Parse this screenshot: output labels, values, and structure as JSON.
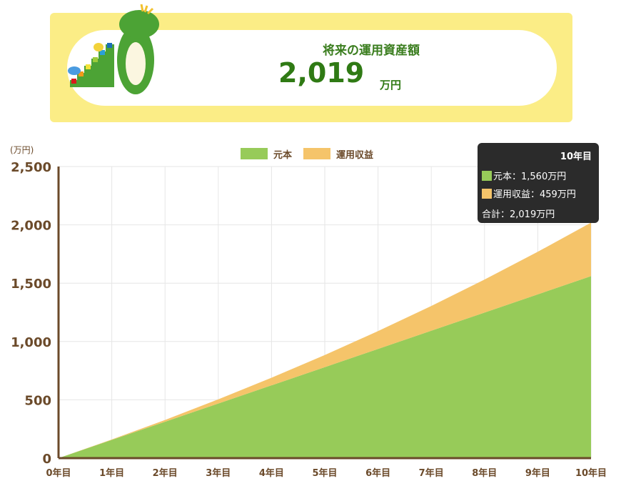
{
  "banner": {
    "title": "将来の運用資産額",
    "amount": "2,019",
    "unit": "万円"
  },
  "chart_data": {
    "type": "area",
    "stacked": true,
    "yunit": "(万円)",
    "ylim": [
      0,
      2500
    ],
    "yticks": [
      "0",
      "500",
      "1,000",
      "1,500",
      "2,000",
      "2,500"
    ],
    "categories": [
      "0年目",
      "1年目",
      "2年目",
      "3年目",
      "4年目",
      "5年目",
      "6年目",
      "7年目",
      "8年目",
      "9年目",
      "10年目"
    ],
    "series": [
      {
        "name": "元本",
        "color": "#97cb59",
        "values": [
          0,
          156,
          312,
          468,
          624,
          780,
          936,
          1092,
          1248,
          1404,
          1560
        ]
      },
      {
        "name": "運用収益",
        "color": "#f5c46a",
        "values": [
          0,
          4,
          15,
          36,
          65,
          104,
          153,
          212,
          283,
          365,
          459
        ]
      }
    ],
    "grid": true,
    "legend": "top-center",
    "tooltip": {
      "title": "10年目",
      "principal": "元本：1,560万円",
      "gain": "運用収益：459万円",
      "total": "合計：2,019万円"
    }
  }
}
